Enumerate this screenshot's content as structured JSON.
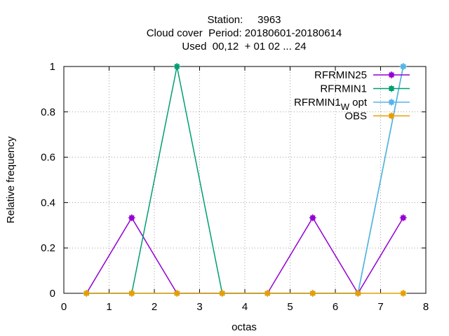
{
  "chart_data": {
    "type": "line",
    "title_lines": [
      "Station:     3963",
      "Cloud cover  Period: 20180601-20180614",
      "Used  00,12  + 01 02 ... 24"
    ],
    "xlabel": "octas",
    "ylabel": "Relative frequency",
    "xlim": [
      0,
      8
    ],
    "ylim": [
      0,
      1
    ],
    "x_ticks": [
      0,
      1,
      2,
      3,
      4,
      5,
      6,
      7,
      8
    ],
    "x_tick_labels": [
      "0",
      "1",
      "2",
      "3",
      "4",
      "5",
      "6",
      "7",
      "8"
    ],
    "y_ticks": [
      0,
      0.2,
      0.4,
      0.6,
      0.8,
      1
    ],
    "y_tick_labels": [
      "0",
      "0.2",
      "0.4",
      "0.6",
      "0.8",
      "1"
    ],
    "grid": true,
    "legend_position": "top-right",
    "x": [
      0.5,
      1.5,
      2.5,
      3.5,
      4.5,
      5.5,
      6.5,
      7.5
    ],
    "series": [
      {
        "name": "RFRMIN25",
        "color": "#9400d3",
        "values": [
          0,
          0.333,
          0,
          0,
          0,
          0.333,
          0,
          0.333
        ]
      },
      {
        "name": "RFRMIN1",
        "color": "#009e73",
        "values": [
          0,
          0,
          1,
          0,
          0,
          0,
          0,
          1
        ]
      },
      {
        "name": "RFRMIN1",
        "name_subscript": "W",
        "name_suffix": " opt",
        "color": "#56b4e9",
        "values": [
          0,
          0,
          0,
          0,
          0,
          0,
          0,
          1
        ]
      },
      {
        "name": "OBS",
        "color": "#e69f00",
        "values": [
          0,
          0,
          0,
          0,
          0,
          0,
          0,
          0
        ]
      }
    ]
  }
}
